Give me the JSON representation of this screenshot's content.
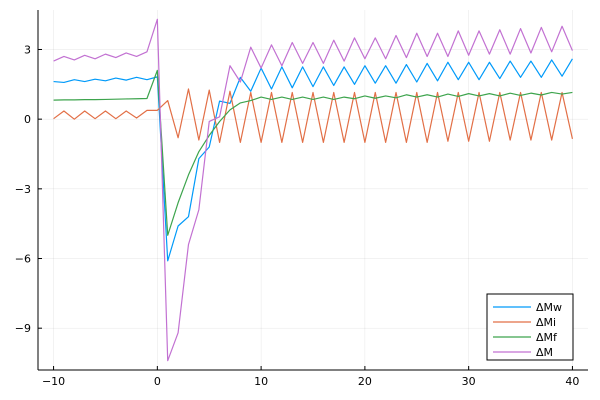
{
  "chart_data": {
    "type": "line",
    "xlim": [
      -11.5,
      41.5
    ],
    "ylim": [
      -10.8,
      4.7
    ],
    "x_ticks": [
      -10,
      0,
      10,
      20,
      30,
      40
    ],
    "y_ticks": [
      3,
      0,
      -3,
      -6,
      -9
    ],
    "x_tick_labels": [
      "−10",
      "0",
      "10",
      "20",
      "30",
      "40"
    ],
    "y_tick_labels": [
      "3",
      "0",
      "−3",
      "−6",
      "−9"
    ],
    "grid": true,
    "legend_position": "bottom-right",
    "x": [
      -10,
      -9,
      -8,
      -7,
      -6,
      -5,
      -4,
      -3,
      -2,
      -1,
      0,
      1,
      2,
      3,
      4,
      5,
      6,
      7,
      8,
      9,
      10,
      11,
      12,
      13,
      14,
      15,
      16,
      17,
      18,
      19,
      20,
      21,
      22,
      23,
      24,
      25,
      26,
      27,
      28,
      29,
      30,
      31,
      32,
      33,
      34,
      35,
      36,
      37,
      38,
      39,
      40
    ],
    "series": [
      {
        "name": "ΔMw",
        "color": "#009af9",
        "values": [
          1.62,
          1.58,
          1.7,
          1.62,
          1.72,
          1.65,
          1.77,
          1.68,
          1.8,
          1.7,
          1.82,
          -6.1,
          -4.6,
          -4.2,
          -1.7,
          -1.2,
          0.78,
          0.68,
          1.8,
          1.2,
          2.2,
          1.3,
          2.25,
          1.35,
          2.25,
          1.4,
          2.25,
          1.45,
          2.25,
          1.5,
          2.3,
          1.55,
          2.3,
          1.55,
          2.35,
          1.6,
          2.4,
          1.65,
          2.45,
          1.7,
          2.45,
          1.7,
          2.45,
          1.75,
          2.5,
          1.8,
          2.5,
          1.8,
          2.55,
          1.85,
          2.6
        ]
      },
      {
        "name": "ΔMi",
        "color": "#e26f46",
        "values": [
          0.02,
          0.35,
          0.0,
          0.35,
          0.02,
          0.35,
          0.02,
          0.35,
          0.05,
          0.38,
          0.38,
          0.8,
          -0.8,
          1.3,
          -0.9,
          1.25,
          -1.0,
          1.2,
          -1.0,
          1.15,
          -1.0,
          1.15,
          -1.0,
          1.15,
          -1.0,
          1.15,
          -1.0,
          1.15,
          -1.0,
          1.15,
          -1.0,
          1.15,
          -1.0,
          1.15,
          -1.0,
          1.15,
          -1.0,
          1.15,
          -0.95,
          1.15,
          -0.95,
          1.15,
          -0.95,
          1.15,
          -0.9,
          1.15,
          -0.9,
          1.15,
          -0.9,
          1.15,
          -0.85
        ]
      },
      {
        "name": "ΔMf",
        "color": "#3da44d",
        "values": [
          0.82,
          0.83,
          0.83,
          0.84,
          0.84,
          0.85,
          0.86,
          0.87,
          0.88,
          0.89,
          2.1,
          -5.0,
          -3.6,
          -2.4,
          -1.4,
          -0.7,
          -0.1,
          0.4,
          0.7,
          0.8,
          0.95,
          0.85,
          0.95,
          0.85,
          0.95,
          0.85,
          0.95,
          0.85,
          0.95,
          0.88,
          1.0,
          0.9,
          1.0,
          0.92,
          1.05,
          0.95,
          1.05,
          0.95,
          1.08,
          0.98,
          1.1,
          1.0,
          1.1,
          1.0,
          1.12,
          1.02,
          1.12,
          1.04,
          1.15,
          1.08,
          1.15
        ]
      },
      {
        "name": "ΔM",
        "color": "#c271d2",
        "values": [
          2.5,
          2.7,
          2.55,
          2.75,
          2.6,
          2.8,
          2.65,
          2.85,
          2.7,
          2.9,
          4.3,
          -10.4,
          -9.2,
          -5.4,
          -3.9,
          -0.1,
          0.1,
          2.3,
          1.6,
          3.1,
          2.2,
          3.2,
          2.3,
          3.3,
          2.4,
          3.3,
          2.4,
          3.4,
          2.5,
          3.5,
          2.6,
          3.5,
          2.6,
          3.6,
          2.65,
          3.7,
          2.7,
          3.7,
          2.7,
          3.8,
          2.75,
          3.8,
          2.8,
          3.85,
          2.8,
          3.9,
          2.85,
          3.95,
          2.9,
          4.0,
          2.95
        ]
      }
    ]
  }
}
